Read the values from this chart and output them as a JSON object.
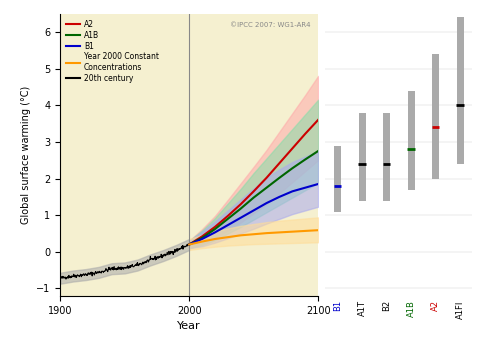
{
  "title": "",
  "ylabel": "Global surface warming (°C)",
  "xlabel": "Year",
  "copyright_text": "©IPCC 2007: WG1-AR4",
  "bg_color": "#f5f0d0",
  "ylim": [
    -1.2,
    6.5
  ],
  "xlim": [
    1900,
    2100
  ],
  "vline_x": 2000,
  "yticks": [
    -1.0,
    0.0,
    1.0,
    2.0,
    3.0,
    4.0,
    5.0,
    6.0
  ],
  "xticks": [
    1900,
    2000,
    2100
  ],
  "legend_items": [
    {
      "label": "A2",
      "color": "#cc0000"
    },
    {
      "label": "A1B",
      "color": "#006600"
    },
    {
      "label": "B1",
      "color": "#0000cc"
    },
    {
      "label": "Year 2000 Constant\nConcentrations",
      "color": "#ff9900"
    },
    {
      "label": "20th century",
      "color": "#000000"
    }
  ],
  "bar_data": [
    {
      "label": "B1",
      "label_color": "#0000cc",
      "best": 1.8,
      "best_color": "#0000cc",
      "low": 1.1,
      "high": 2.9
    },
    {
      "label": "A1T",
      "label_color": "#000000",
      "best": 2.4,
      "best_color": "#000000",
      "low": 1.4,
      "high": 3.8
    },
    {
      "label": "B2",
      "label_color": "#000000",
      "best": 2.4,
      "best_color": "#000000",
      "low": 1.4,
      "high": 3.8
    },
    {
      "label": "A1B",
      "label_color": "#006600",
      "best": 2.8,
      "best_color": "#006600",
      "low": 1.7,
      "high": 4.4
    },
    {
      "label": "A2",
      "label_color": "#cc0000",
      "best": 3.4,
      "best_color": "#cc0000",
      "low": 2.0,
      "high": 5.4
    },
    {
      "label": "A1FI",
      "label_color": "#000000",
      "best": 4.0,
      "best_color": "#000000",
      "low": 2.4,
      "high": 6.4
    }
  ],
  "lines": {
    "A2": {
      "color": "#cc0000",
      "shade_color": "#ffaaaa",
      "years": [
        2000,
        2010,
        2020,
        2030,
        2040,
        2050,
        2060,
        2070,
        2080,
        2090,
        2100
      ],
      "mean": [
        0.2,
        0.42,
        0.68,
        0.98,
        1.3,
        1.65,
        2.02,
        2.42,
        2.82,
        3.22,
        3.6
      ],
      "low": [
        0.1,
        0.22,
        0.38,
        0.58,
        0.8,
        1.05,
        1.3,
        1.6,
        1.9,
        2.2,
        2.5
      ],
      "high": [
        0.3,
        0.62,
        0.98,
        1.42,
        1.87,
        2.32,
        2.78,
        3.28,
        3.78,
        4.28,
        4.8
      ]
    },
    "A1B": {
      "color": "#006600",
      "shade_color": "#88ddaa",
      "years": [
        2000,
        2010,
        2020,
        2030,
        2040,
        2050,
        2060,
        2070,
        2080,
        2090,
        2100
      ],
      "mean": [
        0.2,
        0.38,
        0.62,
        0.9,
        1.18,
        1.48,
        1.75,
        2.02,
        2.28,
        2.52,
        2.75
      ],
      "low": [
        0.1,
        0.18,
        0.32,
        0.5,
        0.68,
        0.88,
        1.08,
        1.28,
        1.48,
        1.68,
        1.88
      ],
      "high": [
        0.3,
        0.58,
        0.92,
        1.32,
        1.72,
        2.15,
        2.55,
        2.95,
        3.35,
        3.75,
        4.15
      ]
    },
    "B1": {
      "color": "#0000cc",
      "shade_color": "#aaaaee",
      "years": [
        2000,
        2010,
        2020,
        2030,
        2040,
        2050,
        2060,
        2070,
        2080,
        2090,
        2100
      ],
      "mean": [
        0.2,
        0.35,
        0.53,
        0.73,
        0.93,
        1.13,
        1.33,
        1.5,
        1.65,
        1.75,
        1.85
      ],
      "low": [
        0.1,
        0.15,
        0.25,
        0.37,
        0.5,
        0.63,
        0.77,
        0.9,
        1.03,
        1.13,
        1.23
      ],
      "high": [
        0.3,
        0.55,
        0.83,
        1.13,
        1.43,
        1.73,
        2.03,
        2.25,
        2.45,
        2.6,
        2.75
      ]
    },
    "Const": {
      "color": "#ff9900",
      "shade_color": "#ffdd99",
      "years": [
        2000,
        2010,
        2020,
        2030,
        2040,
        2050,
        2060,
        2070,
        2080,
        2090,
        2100
      ],
      "mean": [
        0.2,
        0.28,
        0.35,
        0.4,
        0.45,
        0.48,
        0.51,
        0.53,
        0.55,
        0.57,
        0.59
      ],
      "low": [
        0.05,
        0.1,
        0.14,
        0.17,
        0.19,
        0.21,
        0.22,
        0.23,
        0.24,
        0.25,
        0.26
      ],
      "high": [
        0.35,
        0.46,
        0.56,
        0.64,
        0.71,
        0.76,
        0.81,
        0.85,
        0.88,
        0.91,
        0.94
      ]
    },
    "20C": {
      "color": "#000000",
      "shade_color": "#aaaaaa",
      "years_hist": [
        1900,
        1910,
        1920,
        1930,
        1940,
        1950,
        1960,
        1970,
        1980,
        1990,
        2000
      ],
      "mean_hist": [
        -0.72,
        -0.66,
        -0.62,
        -0.56,
        -0.46,
        -0.44,
        -0.36,
        -0.22,
        -0.1,
        0.04,
        0.2
      ],
      "low_hist": [
        -0.87,
        -0.81,
        -0.77,
        -0.71,
        -0.61,
        -0.59,
        -0.51,
        -0.37,
        -0.25,
        -0.11,
        0.05
      ],
      "high_hist": [
        -0.57,
        -0.51,
        -0.47,
        -0.41,
        -0.31,
        -0.29,
        -0.21,
        -0.07,
        0.05,
        0.19,
        0.35
      ]
    }
  }
}
